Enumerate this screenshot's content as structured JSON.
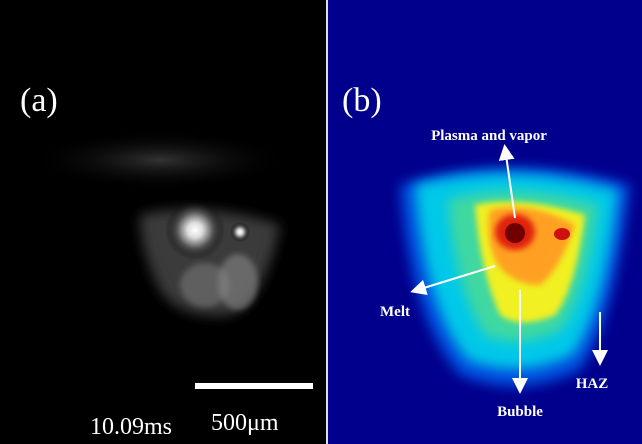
{
  "panels": [
    {
      "label": "(a)",
      "timestamp": "10.09ms",
      "scale_bar_label": "500μm"
    },
    {
      "label": "(b)",
      "annotations": [
        "Plasma and vapor",
        "Melt",
        "Bubble",
        "HAZ"
      ]
    }
  ]
}
